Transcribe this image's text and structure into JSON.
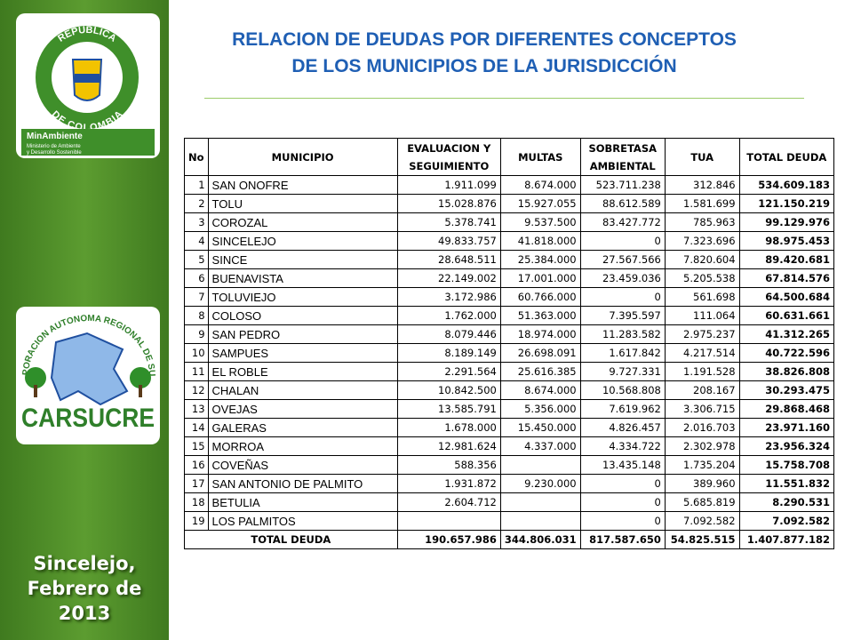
{
  "sidebar": {
    "logo1": {
      "top": "REPÚBLICA",
      "bottom": "DE COLOMBIA",
      "brand": "MinAmbiente",
      "sub1": "Ministerio de Ambiente",
      "sub2": "y Desarrollo Sostenible"
    },
    "logo2": {
      "arc": "CORPORACION AUTONOMA REGIONAL DE SUCRE",
      "brand": "CARSUCRE"
    },
    "place": [
      "Sincelejo,",
      "Febrero de",
      "2013"
    ]
  },
  "header": {
    "title": [
      "RELACION DE DEUDAS POR DIFERENTES CONCEPTOS",
      "DE LOS MUNICIPIOS DE LA JURISDICCIÓN"
    ]
  },
  "table": {
    "columns": [
      "No",
      "MUNICIPIO",
      [
        "EVALUACION Y",
        "SEGUIMIENTO"
      ],
      "MULTAS",
      [
        "SOBRETASA",
        "AMBIENTAL"
      ],
      "TUA",
      "TOTAL DEUDA"
    ],
    "rows": [
      [
        "1",
        "SAN ONOFRE",
        "1.911.099",
        "8.674.000",
        "523.711.238",
        "312.846",
        "534.609.183"
      ],
      [
        "2",
        "TOLU",
        "15.028.876",
        "15.927.055",
        "88.612.589",
        "1.581.699",
        "121.150.219"
      ],
      [
        "3",
        "COROZAL",
        "5.378.741",
        "9.537.500",
        "83.427.772",
        "785.963",
        "99.129.976"
      ],
      [
        "4",
        "SINCELEJO",
        "49.833.757",
        "41.818.000",
        "0",
        "7.323.696",
        "98.975.453"
      ],
      [
        "5",
        "SINCE",
        "28.648.511",
        "25.384.000",
        "27.567.566",
        "7.820.604",
        "89.420.681"
      ],
      [
        "6",
        "BUENAVISTA",
        "22.149.002",
        "17.001.000",
        "23.459.036",
        "5.205.538",
        "67.814.576"
      ],
      [
        "7",
        "TOLUVIEJO",
        "3.172.986",
        "60.766.000",
        "0",
        "561.698",
        "64.500.684"
      ],
      [
        "8",
        "COLOSO",
        "1.762.000",
        "51.363.000",
        "7.395.597",
        "111.064",
        "60.631.661"
      ],
      [
        "9",
        "SAN PEDRO",
        "8.079.446",
        "18.974.000",
        "11.283.582",
        "2.975.237",
        "41.312.265"
      ],
      [
        "10",
        "SAMPUES",
        "8.189.149",
        "26.698.091",
        "1.617.842",
        "4.217.514",
        "40.722.596"
      ],
      [
        "11",
        "EL ROBLE",
        "2.291.564",
        "25.616.385",
        "9.727.331",
        "1.191.528",
        "38.826.808"
      ],
      [
        "12",
        "CHALAN",
        "10.842.500",
        "8.674.000",
        "10.568.808",
        "208.167",
        "30.293.475"
      ],
      [
        "13",
        "OVEJAS",
        "13.585.791",
        "5.356.000",
        "7.619.962",
        "3.306.715",
        "29.868.468"
      ],
      [
        "14",
        "GALERAS",
        "1.678.000",
        "15.450.000",
        "4.826.457",
        "2.016.703",
        "23.971.160"
      ],
      [
        "15",
        "MORROA",
        "12.981.624",
        "4.337.000",
        "4.334.722",
        "2.302.978",
        "23.956.324"
      ],
      [
        "16",
        "COVEÑAS",
        "588.356",
        null,
        "13.435.148",
        "1.735.204",
        "15.758.708"
      ],
      [
        "17",
        "SAN ANTONIO DE PALMITO",
        "1.931.872",
        "9.230.000",
        "0",
        "389.960",
        "11.551.832"
      ],
      [
        "18",
        "BETULIA",
        "2.604.712",
        null,
        "0",
        "5.685.819",
        "8.290.531"
      ],
      [
        "19",
        "LOS PALMITOS",
        null,
        null,
        "0",
        "7.092.582",
        "7.092.582"
      ]
    ],
    "total": [
      "TOTAL DEUDA",
      "190.657.986",
      "344.806.031",
      "817.587.650",
      "54.825.515",
      "1.407.877.182"
    ]
  }
}
